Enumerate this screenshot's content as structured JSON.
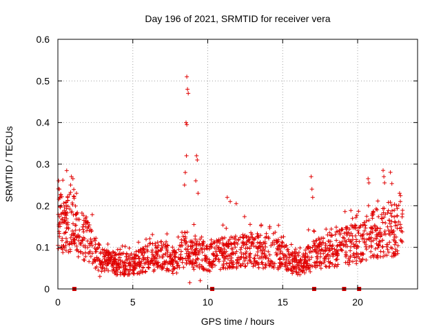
{
  "chart_data": {
    "type": "scatter",
    "title": "Day 196 of 2021, SRMTID for receiver vera",
    "xlabel": "GPS time / hours",
    "ylabel": "SRMTID / TECUs",
    "xlim": [
      0,
      24
    ],
    "ylim": [
      0,
      0.6
    ],
    "x_ticks": [
      0,
      5,
      10,
      15,
      20
    ],
    "x_tick_labels": [
      "0",
      "5",
      "10",
      "15",
      "20"
    ],
    "y_ticks": [
      0,
      0.1,
      0.2,
      0.3,
      0.4,
      0.5,
      0.6
    ],
    "y_tick_labels": [
      "0",
      "0.1",
      "0.2",
      "0.3",
      "0.4",
      "0.5",
      "0.6"
    ],
    "grid": true,
    "marker": "plus",
    "color": "#e00000",
    "gap_marker_color": "#cc0000",
    "gap_markers_x": [
      1.1,
      10.3,
      17.1,
      19.1,
      20.1
    ],
    "series": [
      {
        "name": "SRMTID",
        "profile_x": [
          0,
          0.5,
          1,
          1.3,
          1.6,
          2,
          2.5,
          3,
          4,
          5,
          6,
          7,
          8,
          8.3,
          8.6,
          9,
          9.5,
          10,
          11,
          12,
          13,
          14,
          15,
          15.5,
          16,
          16.5,
          17,
          18,
          19,
          20,
          20.5,
          21,
          22,
          23
        ],
        "profile_y": [
          0.17,
          0.15,
          0.17,
          0.12,
          0.13,
          0.12,
          0.09,
          0.065,
          0.06,
          0.06,
          0.075,
          0.08,
          0.06,
          0.09,
          0.1,
          0.08,
          0.09,
          0.075,
          0.085,
          0.09,
          0.09,
          0.09,
          0.08,
          0.065,
          0.06,
          0.065,
          0.08,
          0.09,
          0.1,
          0.11,
          0.12,
          0.13,
          0.14,
          0.14
        ],
        "extra_points": [
          {
            "x": 8.6,
            "y": 0.51
          },
          {
            "x": 8.65,
            "y": 0.48
          },
          {
            "x": 8.7,
            "y": 0.47
          },
          {
            "x": 8.55,
            "y": 0.4
          },
          {
            "x": 8.6,
            "y": 0.395
          },
          {
            "x": 8.58,
            "y": 0.32
          },
          {
            "x": 9.25,
            "y": 0.32
          },
          {
            "x": 9.3,
            "y": 0.31
          },
          {
            "x": 9.2,
            "y": 0.26
          },
          {
            "x": 9.35,
            "y": 0.23
          },
          {
            "x": 8.45,
            "y": 0.25
          },
          {
            "x": 8.5,
            "y": 0.28
          },
          {
            "x": 0.05,
            "y": 0.26
          },
          {
            "x": 0.1,
            "y": 0.24
          },
          {
            "x": 0.15,
            "y": 0.22
          },
          {
            "x": 0.9,
            "y": 0.27
          },
          {
            "x": 1.0,
            "y": 0.265
          },
          {
            "x": 0.85,
            "y": 0.25
          },
          {
            "x": 16.9,
            "y": 0.27
          },
          {
            "x": 16.95,
            "y": 0.24
          },
          {
            "x": 17.0,
            "y": 0.22
          },
          {
            "x": 11.3,
            "y": 0.22
          },
          {
            "x": 11.5,
            "y": 0.21
          },
          {
            "x": 11.9,
            "y": 0.205
          },
          {
            "x": 20.7,
            "y": 0.265
          },
          {
            "x": 20.75,
            "y": 0.255
          },
          {
            "x": 21.7,
            "y": 0.285
          },
          {
            "x": 21.75,
            "y": 0.27
          },
          {
            "x": 21.8,
            "y": 0.255
          },
          {
            "x": 22.8,
            "y": 0.23
          },
          {
            "x": 22.85,
            "y": 0.21
          },
          {
            "x": 22.6,
            "y": 0.2
          },
          {
            "x": 8.8,
            "y": 0.015
          },
          {
            "x": 2.8,
            "y": 0.03
          },
          {
            "x": 9.5,
            "y": 0.02
          }
        ]
      }
    ]
  }
}
